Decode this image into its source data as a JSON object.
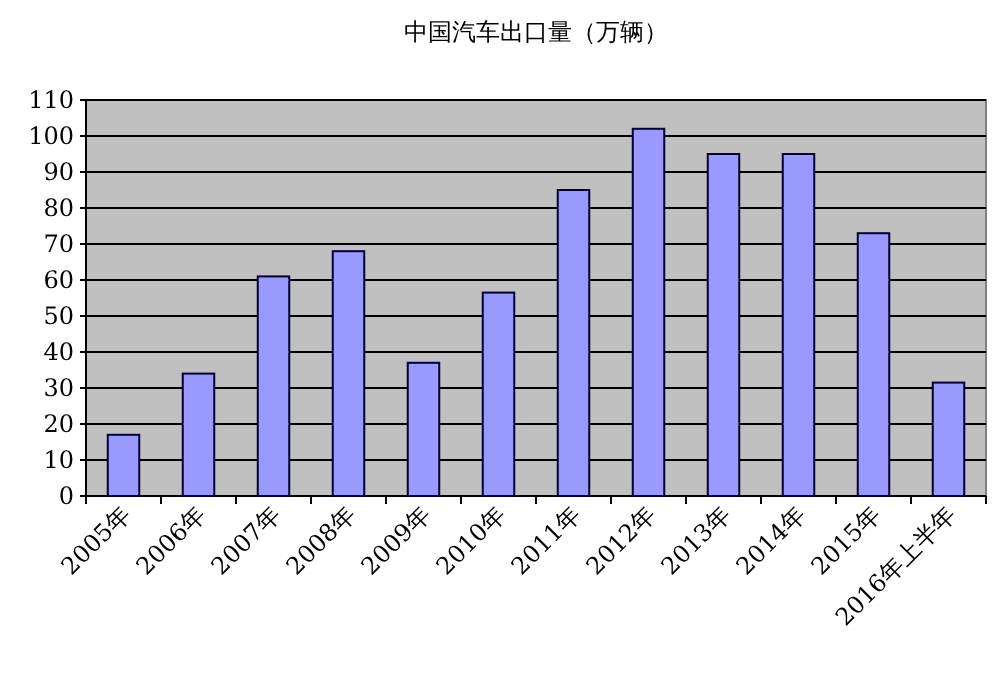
{
  "chart_data": {
    "type": "bar",
    "title": "中国汽车出口量（万辆）",
    "categories": [
      "2005年",
      "2006年",
      "2007年",
      "2008年",
      "2009年",
      "2010年",
      "2011年",
      "2012年",
      "2013年",
      "2014年",
      "2015年",
      "2016年上半年"
    ],
    "values": [
      17,
      34,
      61,
      68,
      37,
      56.5,
      85,
      102,
      95,
      95,
      73,
      31.5
    ],
    "color": "#9999ff",
    "ylim": [
      0,
      110
    ],
    "yticks": [
      0,
      10,
      20,
      30,
      40,
      50,
      60,
      70,
      80,
      90,
      100,
      110
    ],
    "grid": "y"
  }
}
